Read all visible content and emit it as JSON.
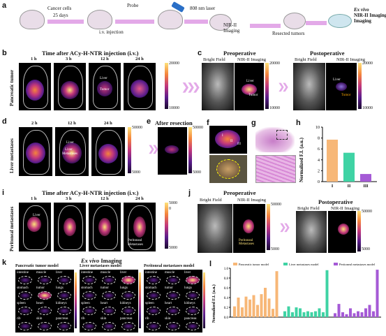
{
  "panels": {
    "a": {
      "label": "a",
      "cancer_cells": "Cancer cells",
      "days": "25 days",
      "probe": "Probe",
      "injection": "i.v. injection",
      "laser": "808 nm laser",
      "nir": "NIR-II Imaging",
      "resected": "Resected tumors",
      "exvivo": "Ex vivo",
      "exvivo_nir": "NIR-II Imaging",
      "exvivo2": "Imaging"
    },
    "b": {
      "label": "b",
      "title": "Time after ACy-H-NTR injection (i.v.)",
      "side": "Pancreatic tumor",
      "times": [
        "1 h",
        "3 h",
        "12 h",
        "24 h"
      ],
      "liver": "Liver",
      "tumor": "Tumor",
      "scale_max": "20000",
      "scale_min": "10000"
    },
    "c": {
      "label": "c",
      "pre": "Preoperative",
      "post": "Postoperative",
      "bf": "Bright Field",
      "nir": "NIR-II Imaging",
      "bf2": "Bright Field",
      "nir2": "NIR-II Imaging",
      "liver": "Liver",
      "tumor": "Tumor",
      "liver2": "Liver",
      "tumor2": "Tumor",
      "scale1_max": "20000",
      "scale1_min": "10000",
      "scale2_max": "20000",
      "scale2_min": "10000"
    },
    "d": {
      "label": "d",
      "side": "Liver metastases",
      "times": [
        "2 h",
        "12 h",
        "24 h"
      ],
      "liver": "Liver",
      "meta1": "Liver",
      "meta2": "Metastases",
      "scale_max": "50000",
      "scale_min": "5000"
    },
    "e": {
      "label": "e",
      "title": "After resection",
      "scale_max": "50000",
      "scale_min": "5000"
    },
    "f": {
      "label": "f",
      "marks": [
        "I",
        "II",
        "III"
      ]
    },
    "g": {
      "label": "g"
    },
    "h": {
      "label": "h",
      "ylabel": "Normalized F.I. (a.u.)",
      "categories": [
        "I",
        "II",
        "III"
      ],
      "ticks": [
        "0",
        "2",
        "4",
        "6",
        "8",
        "10"
      ]
    },
    "i": {
      "label": "i",
      "title": "Time after ACy-H-NTR injection (i.v.)",
      "side": "Peritoneal metastases",
      "times": [
        "1 h",
        "3 h",
        "12 h",
        "24 h"
      ],
      "liver": "Liver",
      "pm1": "Peritoneal",
      "pm2": "Metastases",
      "scale_max": "5000",
      "scale_min": "5000",
      "scale_mid": "0"
    },
    "j": {
      "label": "j",
      "pre": "Preoperative",
      "post": "Postoperative",
      "bf": "Bright Field",
      "nir": "NIR-II Imaging",
      "bf2": "Bright Field",
      "nir2": "NIR-II Imaging",
      "pm1": "Peritoneal",
      "pm2": "Metastases",
      "scale1_max": "50000",
      "scale1_min": "5000",
      "scale2_max": "50000",
      "scale2_min": "5000"
    },
    "k": {
      "label": "k",
      "title_em": "Ex vivo",
      "title_rest": " Imaging",
      "models": [
        "Pancreatic tumor model",
        "Liver metastases model",
        "Peritoneal metastases model"
      ],
      "organs": [
        [
          "intestine",
          "muscle",
          "liver"
        ],
        [
          "stomach",
          "tumor",
          "lungs"
        ],
        [
          "spleen",
          "heart",
          "kidneys"
        ],
        [
          "rib",
          "skin",
          "pancreas"
        ]
      ],
      "organs2": [
        [
          "intestine",
          "muscle",
          "liver"
        ],
        [
          "stomach",
          "tumor",
          "lungs"
        ],
        [
          "spleen",
          "heart",
          "kidneys"
        ],
        [
          "rib",
          "skin",
          "pancreas"
        ]
      ],
      "organs3": [
        [
          "intestine",
          "muscle",
          "liver"
        ],
        [
          "stomach",
          "tumor",
          "lungs"
        ],
        [
          "spleen",
          "heart",
          "kidneys"
        ],
        [
          "rib",
          "skin",
          "pancreas"
        ]
      ]
    },
    "l": {
      "label": "l",
      "ylabel": "Normalized F.I. (a.u.)",
      "legend": [
        "Pancreatic tumor model",
        "Liver metastases model",
        "Peritoneal metastases model"
      ],
      "ticks": [
        "0.0",
        "0.2",
        "0.4",
        "0.6",
        "0.8",
        "1.0"
      ]
    }
  },
  "colors": {
    "orange": "#f7b777",
    "green": "#3fd3a4",
    "purple": "#a55ad6",
    "arrow": "#e3a9e8"
  },
  "chart_data": [
    {
      "type": "bar",
      "panel": "h",
      "categories": [
        "I",
        "II",
        "III"
      ],
      "values": [
        7.7,
        5.3,
        1.4
      ],
      "ylabel": "Normalized F.I. (a.u.)",
      "ylim": [
        0,
        10
      ],
      "colors": [
        "#f7b777",
        "#3fd3a4",
        "#a55ad6"
      ]
    },
    {
      "type": "bar",
      "panel": "l",
      "ylabel": "Normalized F.I. (a.u.)",
      "ylim": [
        0,
        1.0
      ],
      "series": [
        {
          "name": "Pancreatic tumor model",
          "values": [
            0.22,
            0.4,
            0.2,
            0.42,
            0.36,
            0.45,
            0.25,
            0.47,
            0.6,
            0.38,
            0.17,
            0.94
          ]
        },
        {
          "name": "Liver metastases model",
          "values": [
            0.12,
            0.22,
            0.1,
            0.2,
            0.18,
            0.1,
            0.12,
            0.1,
            0.12,
            0.18,
            0.1,
            0.96
          ]
        },
        {
          "name": "Peritoneal metastases model",
          "values": [
            0.08,
            0.27,
            0.1,
            0.06,
            0.18,
            0.08,
            0.12,
            0.1,
            0.18,
            0.25,
            0.12,
            0.97
          ]
        }
      ]
    }
  ]
}
